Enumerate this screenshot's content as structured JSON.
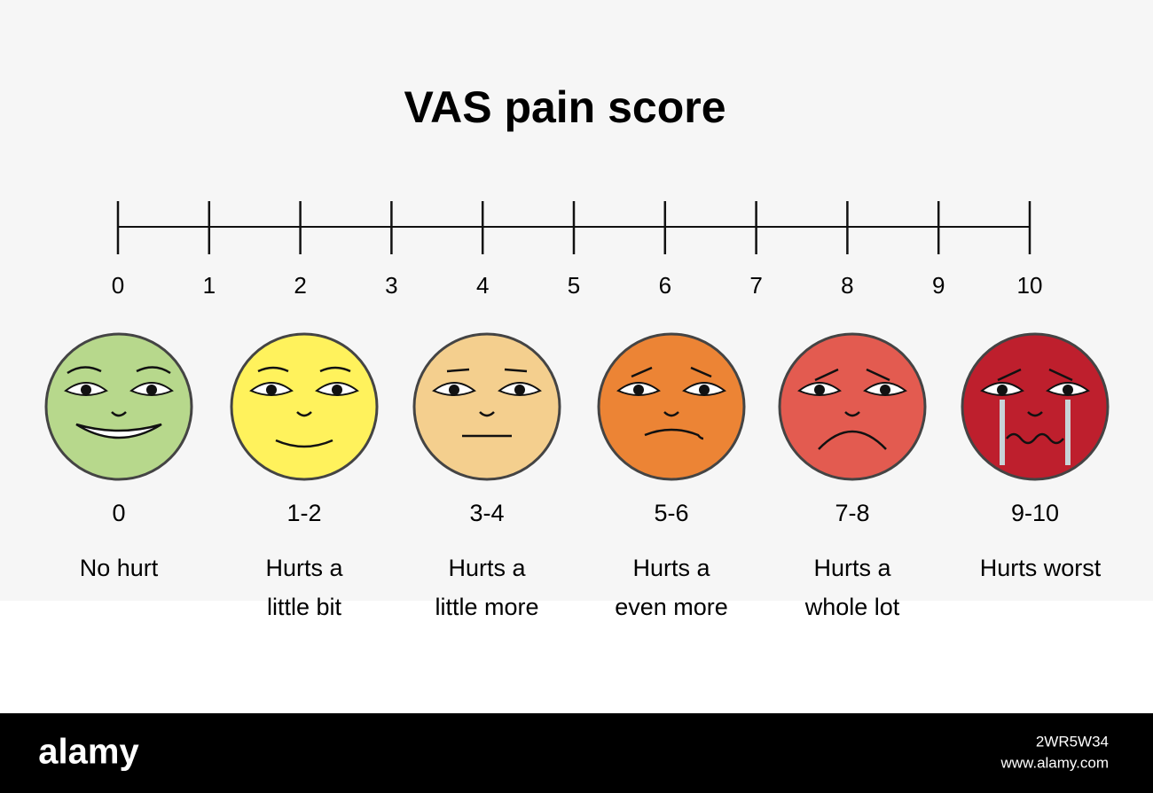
{
  "header": {
    "title": "VAS pain score"
  },
  "scale": {
    "ticks": [
      "0",
      "1",
      "2",
      "3",
      "4",
      "5",
      "6",
      "7",
      "8",
      "9",
      "10"
    ]
  },
  "faces": [
    {
      "range": "0",
      "description": [
        "No hurt"
      ]
    },
    {
      "range": "1-2",
      "description": [
        "Hurts a",
        "little bit"
      ]
    },
    {
      "range": "3-4",
      "description": [
        "Hurts a",
        "little more"
      ]
    },
    {
      "range": "5-6",
      "description": [
        "Hurts a",
        "even more"
      ]
    },
    {
      "range": "7-8",
      "description": [
        "Hurts a",
        "whole lot"
      ]
    },
    {
      "range": "9-10",
      "description": [
        "Hurts worst"
      ]
    }
  ],
  "footer": {
    "brand": "alamy",
    "image_id": "2WR5W34",
    "url": "www.alamy.com"
  }
}
